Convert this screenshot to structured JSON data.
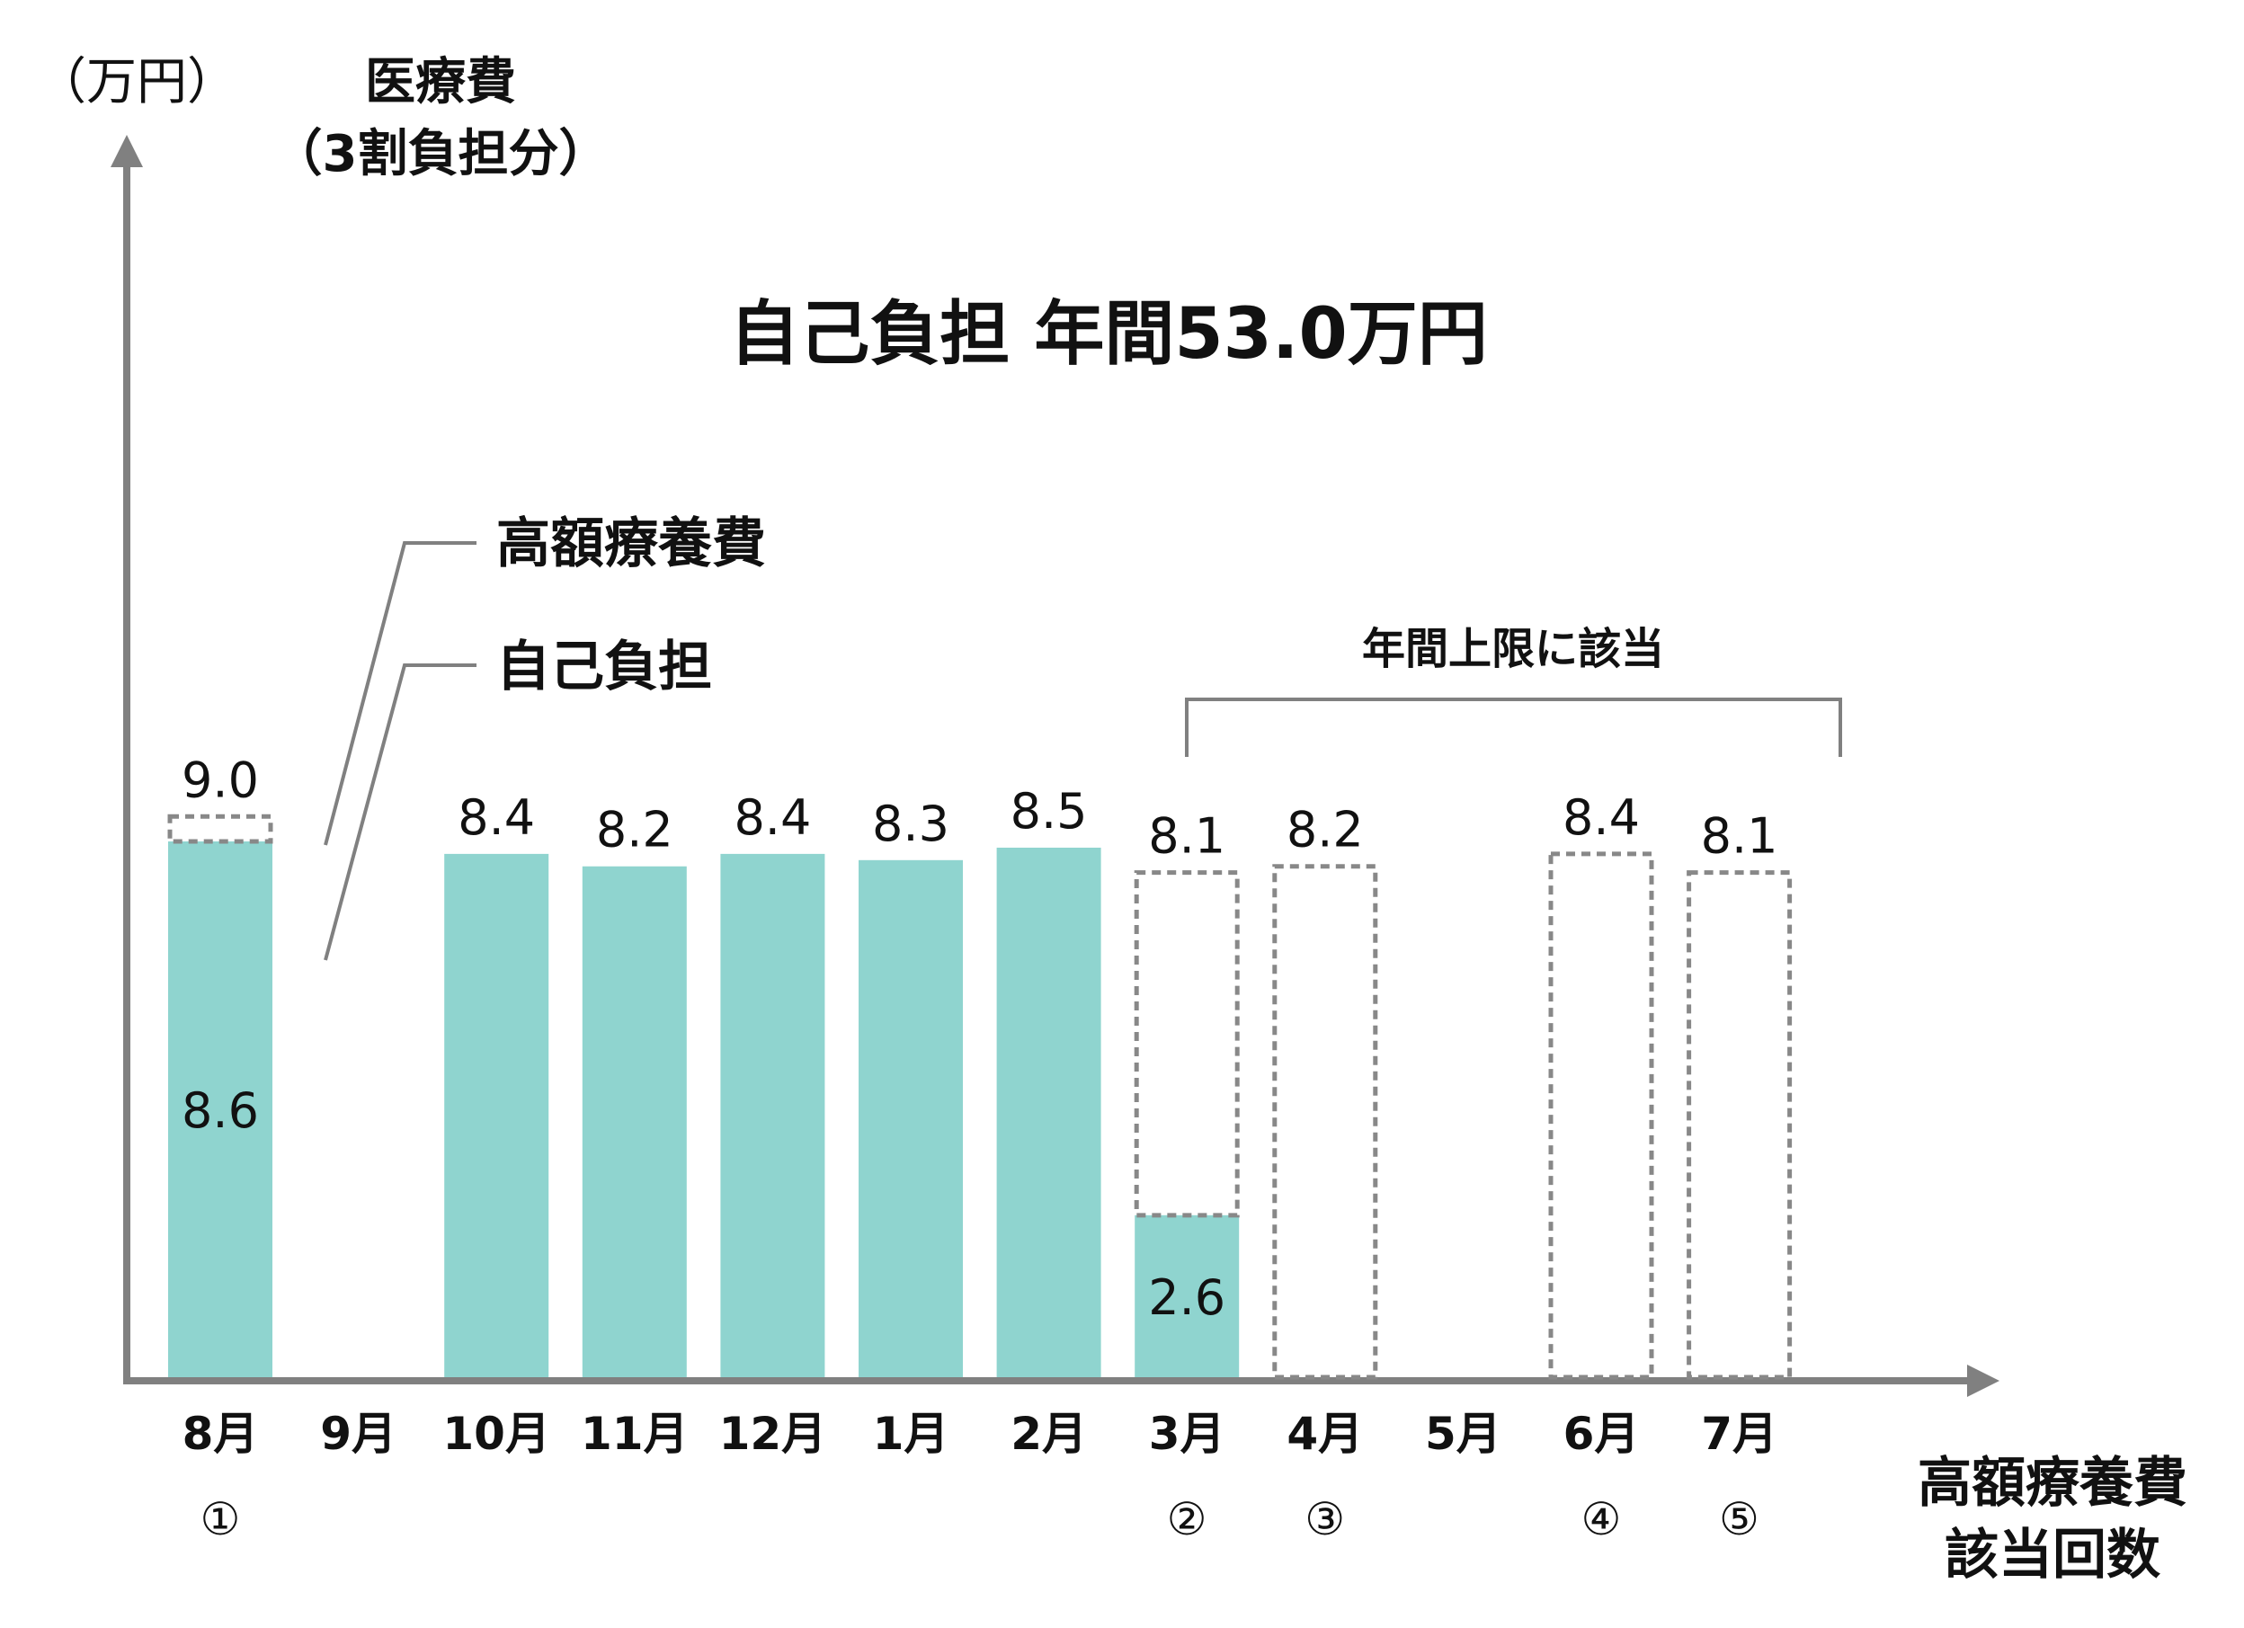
{
  "chart_data": {
    "type": "bar",
    "title": "自己負担 年間53.0万円",
    "y_unit_label": "（万円）",
    "ylabel_line1": "医療費",
    "ylabel_line2": "（3割負担分）",
    "xlabel_line1": "高額療養費",
    "xlabel_line2": "該当回数",
    "ylim": [
      0,
      14
    ],
    "grid": false,
    "categories": [
      "8月",
      "9月",
      "10月",
      "11月",
      "12月",
      "1月",
      "2月",
      "3月",
      "4月",
      "5月",
      "6月",
      "7月"
    ],
    "series": [
      {
        "name": "自己負担",
        "values": [
          8.6,
          null,
          8.4,
          8.2,
          8.4,
          8.3,
          8.5,
          2.6,
          null,
          null,
          null,
          null
        ]
      },
      {
        "name": "高額療養費",
        "values": [
          0.4,
          null,
          null,
          null,
          null,
          null,
          null,
          5.5,
          8.2,
          null,
          8.4,
          8.1
        ]
      }
    ],
    "top_labels": [
      "9.0",
      "",
      "8.4",
      "8.2",
      "8.4",
      "8.3",
      "8.5",
      "8.1",
      "8.2",
      "",
      "8.4",
      "8.1"
    ],
    "inside_labels": [
      "8.6",
      "",
      "",
      "",
      "",
      "",
      "",
      "2.6",
      "",
      "",
      "",
      ""
    ],
    "count_markers": [
      "①",
      "",
      "",
      "",
      "",
      "",
      "",
      "②",
      "③",
      "",
      "④",
      "⑤"
    ],
    "legend": [
      "高額療養費",
      "自己負担"
    ],
    "annotation": "年間上限に該当",
    "colors": {
      "solid": "#8fd4cf",
      "dashed": "#888888",
      "axis": "#808080"
    }
  }
}
